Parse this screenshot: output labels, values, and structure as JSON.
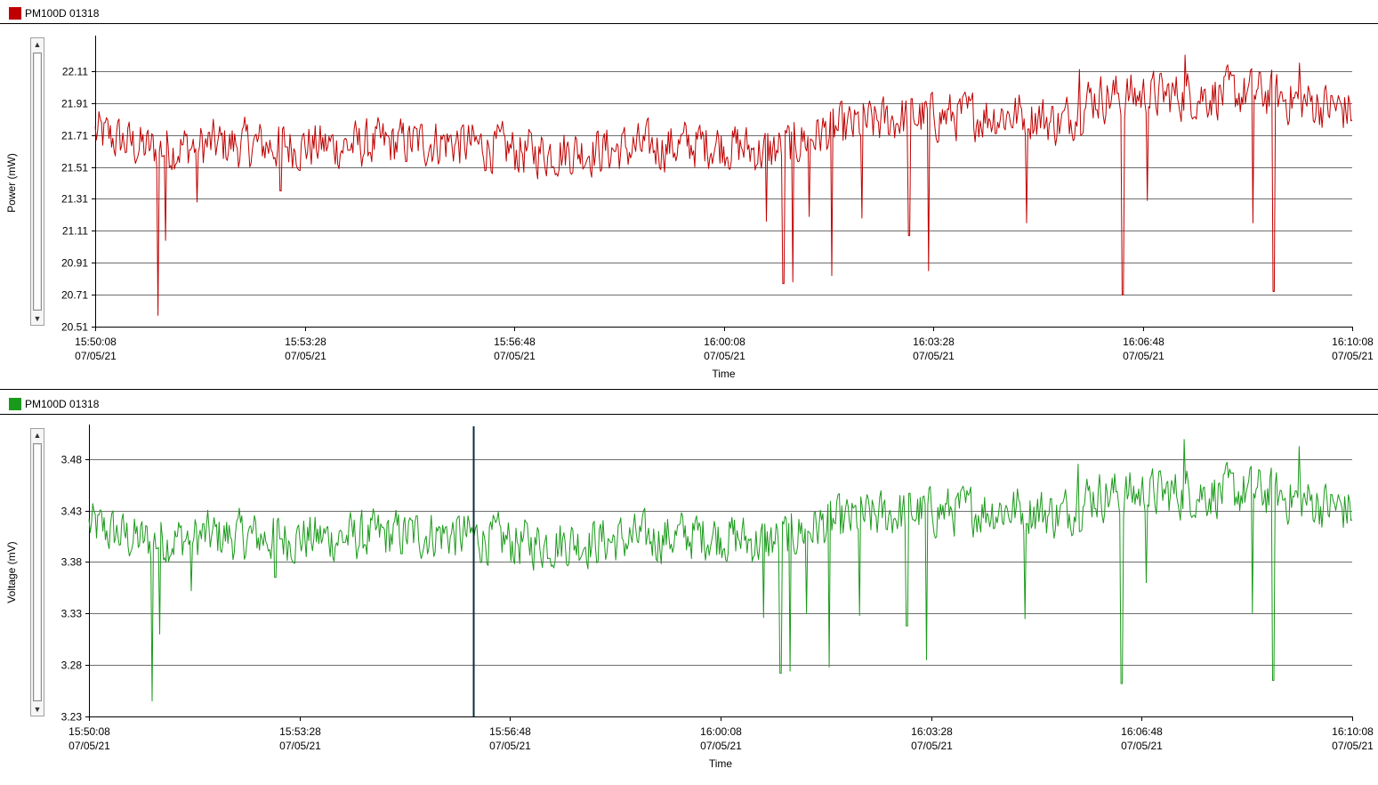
{
  "colors": {
    "power": "#c00000",
    "voltage": "#1a9a1a",
    "cursor": "#0b2e3e",
    "grid": "#6e6e6e"
  },
  "icons": {
    "scroll_up": "triangle-up-icon",
    "scroll_down": "triangle-down-icon"
  },
  "scrollbar": {
    "up_glyph": "▲",
    "down_glyph": "▼"
  },
  "panels": [
    {
      "title": "PM100D 01318"
    },
    {
      "title": "PM100D 01318"
    }
  ],
  "chart_data": [
    {
      "type": "line",
      "title": "PM100D 01318",
      "xlabel": "Time",
      "ylabel": "Power (mW)",
      "x_start": "15:50:08",
      "x_end": "16:10:08",
      "ylim": [
        20.51,
        22.31
      ],
      "y_ticks": [
        "20.51",
        "20.71",
        "20.91",
        "21.11",
        "21.31",
        "21.51",
        "21.71",
        "21.91",
        "22.11"
      ],
      "x_ticks": [
        {
          "time": "15:50:08",
          "date": "07/05/21"
        },
        {
          "time": "15:53:28",
          "date": "07/05/21"
        },
        {
          "time": "15:56:48",
          "date": "07/05/21"
        },
        {
          "time": "16:00:08",
          "date": "07/05/21"
        },
        {
          "time": "16:03:28",
          "date": "07/05/21"
        },
        {
          "time": "16:06:48",
          "date": "07/05/21"
        },
        {
          "time": "16:10:08",
          "date": "07/05/21"
        }
      ],
      "grid": true,
      "series": [
        {
          "name": "PM100D 01318",
          "color": "#c00000",
          "baseline": [
            {
              "t": "15:50:08",
              "v": 21.72
            },
            {
              "t": "15:51:00",
              "v": 21.62
            },
            {
              "t": "15:52:00",
              "v": 21.65
            },
            {
              "t": "15:54:00",
              "v": 21.64
            },
            {
              "t": "15:55:40",
              "v": 21.67
            },
            {
              "t": "15:57:00",
              "v": 21.6
            },
            {
              "t": "15:58:30",
              "v": 21.62
            },
            {
              "t": "16:00:00",
              "v": 21.66
            },
            {
              "t": "16:00:50",
              "v": 21.6
            },
            {
              "t": "16:01:40",
              "v": 21.72
            },
            {
              "t": "16:03:00",
              "v": 21.82
            },
            {
              "t": "16:05:00",
              "v": 21.84
            },
            {
              "t": "16:05:30",
              "v": 21.78
            },
            {
              "t": "16:06:00",
              "v": 21.95
            },
            {
              "t": "16:07:30",
              "v": 21.96
            },
            {
              "t": "16:08:40",
              "v": 21.97
            },
            {
              "t": "16:10:08",
              "v": 21.86
            }
          ],
          "spread": 0.17,
          "dips": [
            {
              "t": "15:51:08",
              "v": 20.58
            },
            {
              "t": "15:51:15",
              "v": 21.05
            },
            {
              "t": "15:51:45",
              "v": 21.29
            },
            {
              "t": "15:53:05",
              "v": 21.36
            },
            {
              "t": "16:00:49",
              "v": 21.17
            },
            {
              "t": "16:01:05",
              "v": 20.78
            },
            {
              "t": "16:01:14",
              "v": 20.79
            },
            {
              "t": "16:01:30",
              "v": 21.2
            },
            {
              "t": "16:01:51",
              "v": 20.83
            },
            {
              "t": "16:02:20",
              "v": 21.19
            },
            {
              "t": "16:03:05",
              "v": 21.08
            },
            {
              "t": "16:03:24",
              "v": 20.86
            },
            {
              "t": "16:04:57",
              "v": 21.16
            },
            {
              "t": "16:06:29",
              "v": 20.71
            },
            {
              "t": "16:06:52",
              "v": 21.3
            },
            {
              "t": "16:08:33",
              "v": 21.16
            },
            {
              "t": "16:08:53",
              "v": 20.73
            }
          ],
          "peaks": [
            {
              "t": "16:07:28",
              "v": 22.21
            },
            {
              "t": "16:09:18",
              "v": 22.16
            },
            {
              "t": "16:05:48",
              "v": 22.12
            }
          ]
        }
      ]
    },
    {
      "type": "line",
      "title": "PM100D 01318",
      "xlabel": "Time",
      "ylabel": "Voltage (mV)",
      "x_start": "15:50:08",
      "x_end": "16:10:08",
      "ylim": [
        3.23,
        3.51
      ],
      "y_ticks": [
        "3.23",
        "3.28",
        "3.33",
        "3.38",
        "3.43",
        "3.48"
      ],
      "x_ticks": [
        {
          "time": "15:50:08",
          "date": "07/05/21"
        },
        {
          "time": "15:53:28",
          "date": "07/05/21"
        },
        {
          "time": "15:56:48",
          "date": "07/05/21"
        },
        {
          "time": "16:00:08",
          "date": "07/05/21"
        },
        {
          "time": "16:03:28",
          "date": "07/05/21"
        },
        {
          "time": "16:06:48",
          "date": "07/05/21"
        },
        {
          "time": "16:10:08",
          "date": "07/05/21"
        }
      ],
      "grid": true,
      "cursor_time": "15:56:13",
      "series": [
        {
          "name": "PM100D 01318",
          "color": "#1a9a1a",
          "baseline": [
            {
              "t": "15:50:08",
              "v": 3.415
            },
            {
              "t": "15:51:00",
              "v": 3.4
            },
            {
              "t": "15:52:00",
              "v": 3.405
            },
            {
              "t": "15:54:00",
              "v": 3.403
            },
            {
              "t": "15:55:40",
              "v": 3.408
            },
            {
              "t": "15:57:00",
              "v": 3.398
            },
            {
              "t": "15:58:30",
              "v": 3.401
            },
            {
              "t": "16:00:00",
              "v": 3.407
            },
            {
              "t": "16:00:50",
              "v": 3.398
            },
            {
              "t": "16:01:40",
              "v": 3.415
            },
            {
              "t": "16:03:00",
              "v": 3.428
            },
            {
              "t": "16:05:00",
              "v": 3.432
            },
            {
              "t": "16:05:30",
              "v": 3.425
            },
            {
              "t": "16:06:00",
              "v": 3.445
            },
            {
              "t": "16:07:30",
              "v": 3.447
            },
            {
              "t": "16:08:40",
              "v": 3.448
            },
            {
              "t": "16:10:08",
              "v": 3.43
            }
          ],
          "spread": 0.027,
          "dips": [
            {
              "t": "15:51:08",
              "v": 3.245
            },
            {
              "t": "15:51:15",
              "v": 3.31
            },
            {
              "t": "15:51:45",
              "v": 3.352
            },
            {
              "t": "15:53:05",
              "v": 3.365
            },
            {
              "t": "16:00:49",
              "v": 3.326
            },
            {
              "t": "16:01:05",
              "v": 3.272
            },
            {
              "t": "16:01:14",
              "v": 3.274
            },
            {
              "t": "16:01:30",
              "v": 3.33
            },
            {
              "t": "16:01:51",
              "v": 3.278
            },
            {
              "t": "16:02:20",
              "v": 3.328
            },
            {
              "t": "16:03:05",
              "v": 3.318
            },
            {
              "t": "16:03:24",
              "v": 3.285
            },
            {
              "t": "16:04:57",
              "v": 3.325
            },
            {
              "t": "16:06:29",
              "v": 3.262
            },
            {
              "t": "16:06:52",
              "v": 3.36
            },
            {
              "t": "16:08:33",
              "v": 3.33
            },
            {
              "t": "16:08:53",
              "v": 3.265
            }
          ],
          "peaks": [
            {
              "t": "16:07:28",
              "v": 3.499
            },
            {
              "t": "16:09:18",
              "v": 3.492
            },
            {
              "t": "16:05:48",
              "v": 3.475
            }
          ]
        }
      ]
    }
  ]
}
